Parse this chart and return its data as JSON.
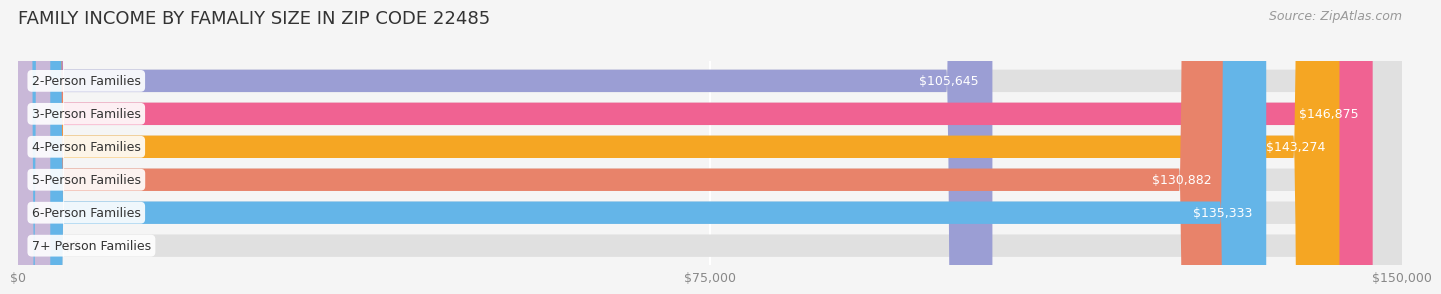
{
  "title": "FAMILY INCOME BY FAMALIY SIZE IN ZIP CODE 22485",
  "source": "Source: ZipAtlas.com",
  "categories": [
    "2-Person Families",
    "3-Person Families",
    "4-Person Families",
    "5-Person Families",
    "6-Person Families",
    "7+ Person Families"
  ],
  "values": [
    105645,
    146875,
    143274,
    130882,
    135333,
    0
  ],
  "bar_colors": [
    "#9b9ed4",
    "#f06292",
    "#f5a623",
    "#e8836a",
    "#64b5e8",
    "#c9b8d8"
  ],
  "label_colors": [
    "white",
    "white",
    "white",
    "white",
    "white",
    "black"
  ],
  "xlim": [
    0,
    150000
  ],
  "xticks": [
    0,
    75000,
    150000
  ],
  "xtick_labels": [
    "$0",
    "$75,000",
    "$150,000"
  ],
  "background_color": "#f5f5f5",
  "bar_bg_color": "#e0e0e0",
  "title_fontsize": 13,
  "source_fontsize": 9,
  "label_fontsize": 9,
  "category_fontsize": 9,
  "bar_height": 0.68
}
